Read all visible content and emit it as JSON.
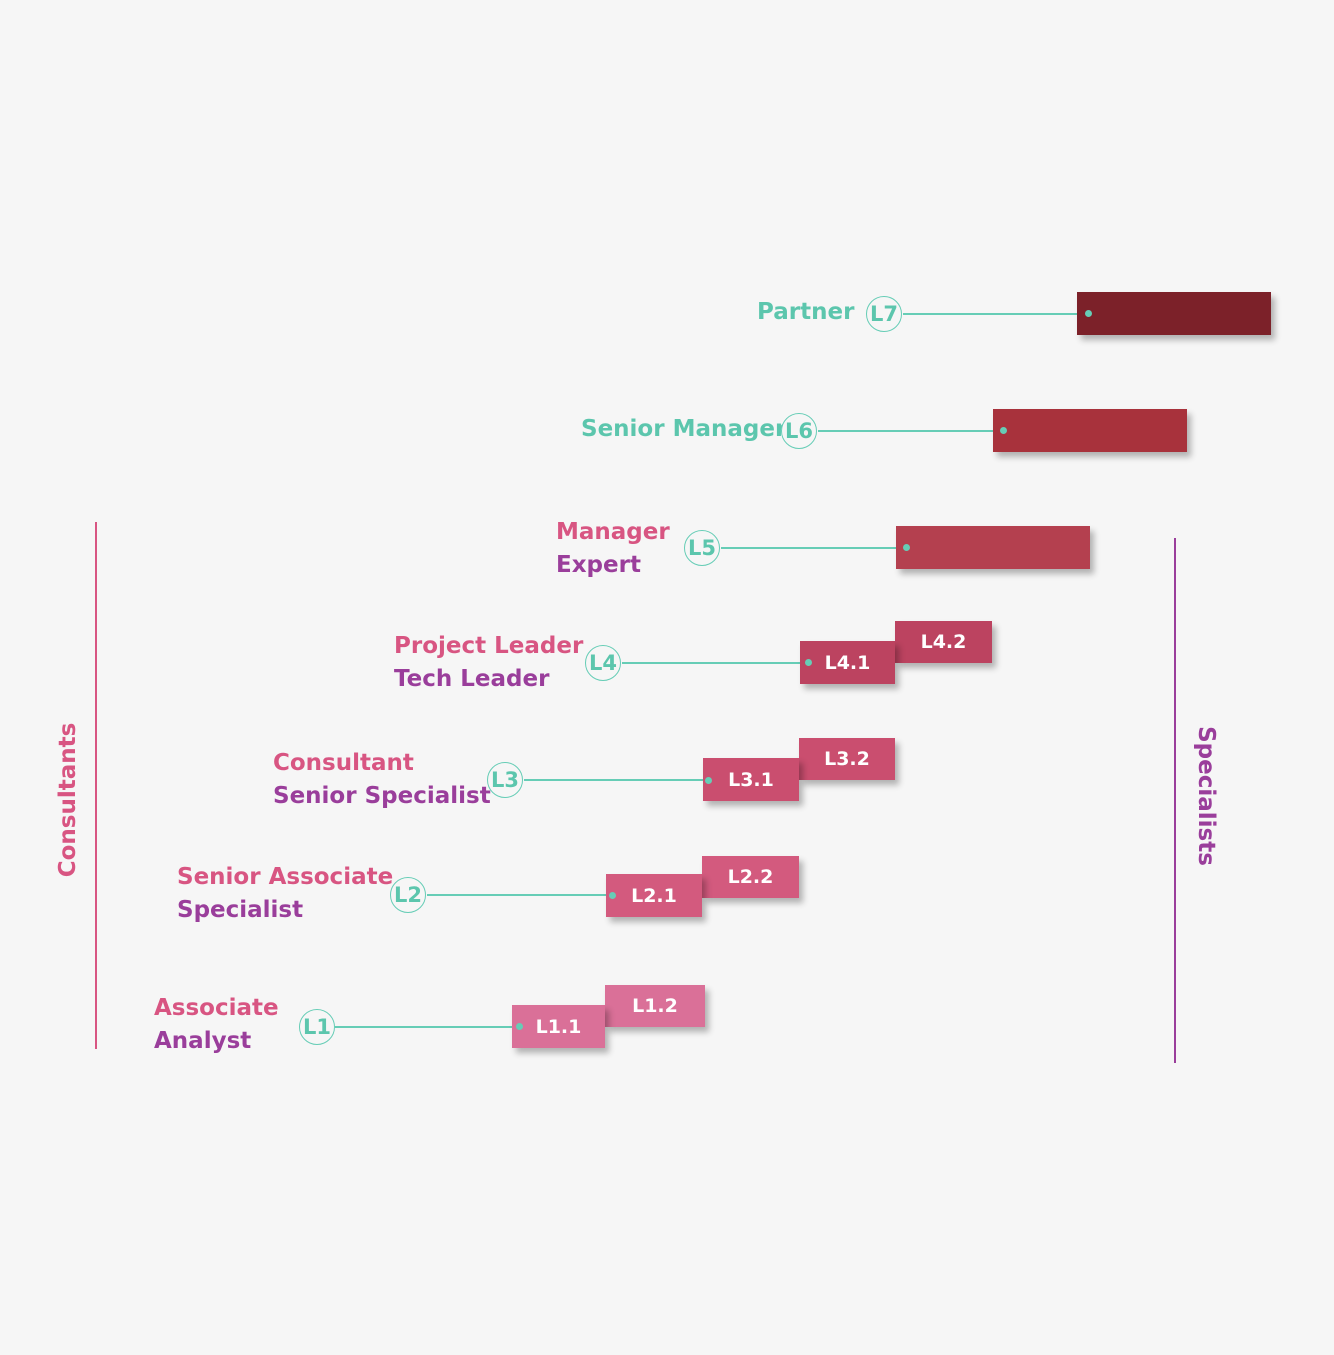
{
  "groups": {
    "consultants": "Consultants",
    "specialists": "Specialists"
  },
  "levels": {
    "l7": {
      "code": "L7",
      "title": "Partner"
    },
    "l6": {
      "code": "L6",
      "title": "Senior Manager"
    },
    "l5": {
      "code": "L5",
      "consultant_title": "Manager",
      "specialist_title": "Expert"
    },
    "l4": {
      "code": "L4",
      "consultant_title": "Project Leader",
      "specialist_title": "Tech Leader",
      "sub1": "L4.1",
      "sub2": "L4.2"
    },
    "l3": {
      "code": "L3",
      "consultant_title": "Consultant",
      "specialist_title": "Senior Specialist",
      "sub1": "L3.1",
      "sub2": "L3.2"
    },
    "l2": {
      "code": "L2",
      "consultant_title": "Senior Associate",
      "specialist_title": "Specialist",
      "sub1": "L2.1",
      "sub2": "L2.2"
    },
    "l1": {
      "code": "L1",
      "consultant_title": "Associate",
      "specialist_title": "Analyst",
      "sub1": "L1.1",
      "sub2": "L1.2"
    }
  },
  "colors": {
    "teal": "#5cc6ad",
    "consultant_pink": "#d85582",
    "specialist_purple": "#9a3e9b",
    "bar_l7": "#7c2129",
    "bar_l6": "#a8323c",
    "bar_l5": "#b4404f",
    "bar_l4": "#bc4360",
    "bar_l3": "#ca4e6f",
    "bar_l2": "#d35a7e",
    "bar_l1": "#da7098"
  }
}
